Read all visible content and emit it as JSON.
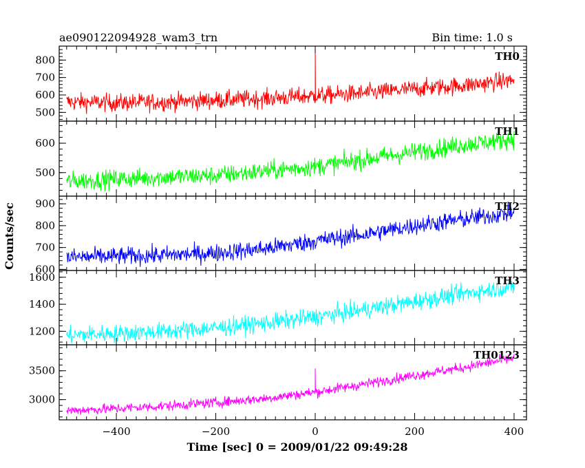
{
  "header": {
    "left": "ae090122094928_wam3_trn",
    "right": "Bin time: 1.0 s"
  },
  "chart_data": {
    "type": "line",
    "title": "ae090122094928_wam3_trn",
    "subtitle": "Bin time: 1.0 s",
    "xlabel": "Time [sec] 0 = 2009/01/22 09:49:28",
    "ylabel": "Counts/sec",
    "xlim": [
      -515,
      425
    ],
    "x_ticks": [
      -400,
      -200,
      0,
      200,
      400
    ],
    "x_tick_labels": [
      "−400",
      "−200",
      "0",
      "200",
      "400"
    ],
    "x_sample": [
      -500,
      -400,
      -300,
      -200,
      -100,
      0,
      100,
      200,
      300,
      400
    ],
    "grid": false,
    "legend": "none",
    "panels": [
      {
        "label": "TH0",
        "color": "#ff0000",
        "ylim": [
          450,
          880
        ],
        "y_ticks": [
          500,
          600,
          700,
          800
        ],
        "values": [
          560,
          555,
          560,
          570,
          580,
          595,
          610,
          635,
          655,
          685
        ],
        "noise": 35,
        "spike": {
          "x": 0,
          "y": 880
        }
      },
      {
        "label": "TH1",
        "color": "#00ff00",
        "ylim": [
          420,
          675
        ],
        "y_ticks": [
          500,
          600
        ],
        "values": [
          470,
          478,
          485,
          490,
          505,
          520,
          545,
          570,
          595,
          615
        ],
        "noise": 22
      },
      {
        "label": "TH2",
        "color": "#0000ff",
        "ylim": [
          595,
          935
        ],
        "y_ticks": [
          600,
          700,
          800,
          900
        ],
        "values": [
          655,
          660,
          665,
          675,
          695,
          730,
          760,
          800,
          830,
          860
        ],
        "noise": 28
      },
      {
        "label": "TH3",
        "color": "#00ffff",
        "ylim": [
          1100,
          1650
        ],
        "y_ticks": [
          1200,
          1400,
          1600
        ],
        "values": [
          1170,
          1185,
          1200,
          1225,
          1260,
          1305,
          1360,
          1420,
          1480,
          1530
        ],
        "noise": 45
      },
      {
        "label": "TH0123",
        "color": "#ff00ff",
        "ylim": [
          2650,
          3950
        ],
        "y_ticks": [
          3000,
          3500
        ],
        "values": [
          2810,
          2845,
          2890,
          2950,
          3020,
          3130,
          3270,
          3420,
          3560,
          3720
        ],
        "noise": 60,
        "spike": {
          "x": 0,
          "y": 3540
        }
      }
    ]
  }
}
